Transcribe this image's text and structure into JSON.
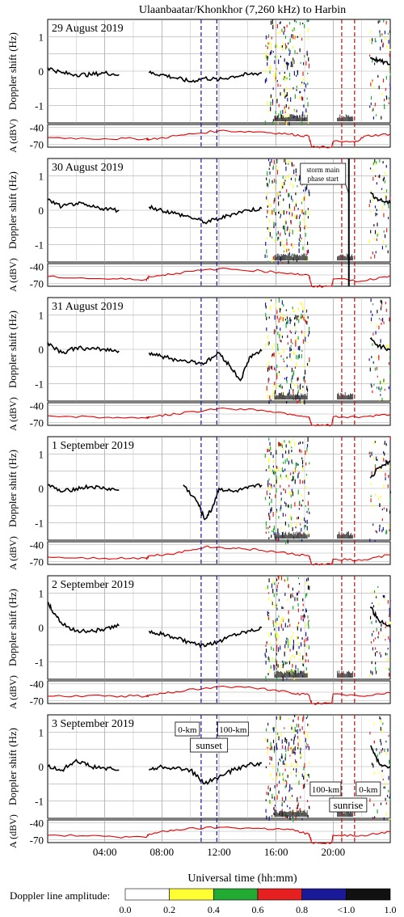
{
  "chart_data": {
    "type": "line",
    "title": "Ulaanbaatar/Khonkhor (7,260 kHz) to Harbin",
    "xlabel": "Universal time (hh:mm)",
    "x_range_hours": [
      0,
      24
    ],
    "x_ticks": [
      "04:00",
      "08:00",
      "12:00",
      "16:00",
      "20:00"
    ],
    "x_tick_hours": [
      4,
      8,
      12,
      16,
      20
    ],
    "doppler_ylabel": "Doppler shift (Hz)",
    "doppler_ylim": [
      -1.5,
      1.5
    ],
    "doppler_ticks": [
      1,
      0,
      -1
    ],
    "amp_ylabel": "A (dBV)",
    "amp_ticks": [
      -40,
      -70
    ],
    "amp_ylim": [
      -75,
      -35
    ],
    "grid": true,
    "panels": [
      {
        "label": "29 August 2019",
        "sunset_hours": [
          10.75,
          11.85
        ],
        "sunrise_hours": [
          20.6,
          21.5
        ],
        "doppler": [
          [
            0,
            0.1
          ],
          [
            1,
            -0.05
          ],
          [
            2,
            -0.1
          ],
          [
            3,
            -0.1
          ],
          [
            4,
            -0.05
          ],
          [
            5,
            -0.1
          ],
          [
            7.1,
            -0.05
          ],
          [
            8,
            -0.1
          ],
          [
            9,
            -0.2
          ],
          [
            10,
            -0.3
          ],
          [
            11,
            -0.2
          ],
          [
            12,
            -0.25
          ],
          [
            13,
            -0.15
          ],
          [
            14,
            -0.1
          ],
          [
            15,
            -0.05
          ],
          [
            22.6,
            0.4
          ],
          [
            23.2,
            0.3
          ],
          [
            24,
            0.2
          ]
        ],
        "amplitude": [
          [
            0,
            -58
          ],
          [
            4,
            -60
          ],
          [
            6.9,
            -60
          ],
          [
            7.1,
            -62
          ],
          [
            9,
            -55
          ],
          [
            12,
            -46
          ],
          [
            15,
            -48
          ],
          [
            17,
            -52
          ],
          [
            18.3,
            -56
          ],
          [
            18.5,
            -75
          ],
          [
            19.9,
            -75
          ],
          [
            20,
            -65
          ],
          [
            21.5,
            -66
          ],
          [
            22.3,
            -55
          ],
          [
            24,
            -52
          ]
        ]
      },
      {
        "label": "30 August 2019",
        "sunset_hours": [
          10.75,
          11.85
        ],
        "sunrise_hours": [
          20.6,
          21.5
        ],
        "storm_hour": 21.1,
        "storm_label": [
          "storm main",
          "phase start"
        ],
        "doppler": [
          [
            0,
            0.3
          ],
          [
            1,
            0.1
          ],
          [
            2,
            0.2
          ],
          [
            3,
            0.1
          ],
          [
            4,
            0.05
          ],
          [
            5,
            0.0
          ],
          [
            7.1,
            0.1
          ],
          [
            8,
            0.0
          ],
          [
            9,
            -0.1
          ],
          [
            10,
            -0.2
          ],
          [
            11,
            -0.35
          ],
          [
            12,
            -0.25
          ],
          [
            13,
            -0.1
          ],
          [
            14,
            0.0
          ],
          [
            15,
            0.05
          ],
          [
            22.6,
            0.5
          ],
          [
            23.2,
            0.3
          ],
          [
            24,
            0.2
          ]
        ],
        "amplitude": [
          [
            0,
            -58
          ],
          [
            4,
            -62
          ],
          [
            6.9,
            -63
          ],
          [
            7.1,
            -58
          ],
          [
            9,
            -52
          ],
          [
            12,
            -44
          ],
          [
            15,
            -48
          ],
          [
            17,
            -52
          ],
          [
            18.3,
            -56
          ],
          [
            18.5,
            -75
          ],
          [
            19.9,
            -75
          ],
          [
            20,
            -62
          ],
          [
            22,
            -66
          ],
          [
            24,
            -56
          ]
        ]
      },
      {
        "label": "31 August 2019",
        "sunset_hours": [
          10.75,
          11.85
        ],
        "sunrise_hours": [
          20.6,
          21.5
        ],
        "doppler": [
          [
            0,
            0.2
          ],
          [
            1,
            -0.1
          ],
          [
            2,
            0.05
          ],
          [
            3,
            0.0
          ],
          [
            4,
            0.0
          ],
          [
            5,
            -0.05
          ],
          [
            7.1,
            -0.1
          ],
          [
            8,
            -0.2
          ],
          [
            9,
            -0.3
          ],
          [
            10,
            -0.35
          ],
          [
            11,
            -0.4
          ],
          [
            12,
            -0.1
          ],
          [
            12.8,
            -0.5
          ],
          [
            13.5,
            -0.9
          ],
          [
            14.2,
            -0.2
          ],
          [
            15,
            -0.05
          ],
          [
            22.6,
            0.3
          ],
          [
            23.2,
            0.1
          ],
          [
            24,
            0.0
          ]
        ],
        "amplitude": [
          [
            0,
            -58
          ],
          [
            4,
            -61
          ],
          [
            6.9,
            -62
          ],
          [
            7.1,
            -60
          ],
          [
            9,
            -55
          ],
          [
            12,
            -45
          ],
          [
            15,
            -48
          ],
          [
            17,
            -55
          ],
          [
            18.3,
            -60
          ],
          [
            18.5,
            -75
          ],
          [
            19.9,
            -75
          ],
          [
            20,
            -60
          ],
          [
            22,
            -60
          ],
          [
            24,
            -56
          ]
        ]
      },
      {
        "label": "1 September 2019",
        "sunset_hours": [
          10.75,
          11.85
        ],
        "sunrise_hours": [
          20.6,
          21.5
        ],
        "doppler": [
          [
            0,
            0.1
          ],
          [
            1,
            -0.1
          ],
          [
            2,
            0.0
          ],
          [
            3,
            0.05
          ],
          [
            4,
            0.0
          ],
          [
            5,
            -0.05
          ],
          [
            9.5,
            0.1
          ],
          [
            10.5,
            -0.4
          ],
          [
            11,
            -0.9
          ],
          [
            11.5,
            -0.6
          ],
          [
            12,
            0.0
          ],
          [
            13,
            -0.1
          ],
          [
            14,
            0.0
          ],
          [
            15,
            0.1
          ],
          [
            22.6,
            0.3
          ],
          [
            23.2,
            0.6
          ],
          [
            24,
            0.8
          ]
        ],
        "amplitude": [
          [
            0,
            -62
          ],
          [
            4,
            -64
          ],
          [
            6.9,
            -64
          ],
          [
            7.1,
            -60
          ],
          [
            9,
            -55
          ],
          [
            11,
            -44
          ],
          [
            13,
            -46
          ],
          [
            15,
            -50
          ],
          [
            17,
            -56
          ],
          [
            18.3,
            -60
          ],
          [
            18.5,
            -75
          ],
          [
            19.9,
            -75
          ],
          [
            20,
            -66
          ],
          [
            22,
            -68
          ],
          [
            24,
            -58
          ]
        ]
      },
      {
        "label": "2 September 2019",
        "sunset_hours": [
          10.75,
          11.85
        ],
        "sunrise_hours": [
          20.6,
          21.5
        ],
        "doppler": [
          [
            0,
            0.7
          ],
          [
            0.5,
            0.4
          ],
          [
            1,
            0.1
          ],
          [
            2,
            -0.1
          ],
          [
            3,
            -0.1
          ],
          [
            4,
            -0.05
          ],
          [
            5,
            0.05
          ],
          [
            7.1,
            -0.1
          ],
          [
            8,
            -0.2
          ],
          [
            9,
            -0.3
          ],
          [
            10,
            -0.45
          ],
          [
            11,
            -0.55
          ],
          [
            12,
            -0.4
          ],
          [
            13,
            -0.2
          ],
          [
            14,
            -0.1
          ],
          [
            15,
            0.0
          ],
          [
            22.6,
            0.6
          ],
          [
            23.2,
            0.2
          ],
          [
            24,
            0.0
          ]
        ],
        "amplitude": [
          [
            0,
            -62
          ],
          [
            4,
            -62
          ],
          [
            6.9,
            -62
          ],
          [
            7.1,
            -60
          ],
          [
            9,
            -54
          ],
          [
            12,
            -45
          ],
          [
            15,
            -48
          ],
          [
            17,
            -56
          ],
          [
            18.3,
            -60
          ],
          [
            18.5,
            -75
          ],
          [
            19.9,
            -75
          ],
          [
            20,
            -58
          ],
          [
            22,
            -62
          ],
          [
            24,
            -56
          ]
        ]
      },
      {
        "label": "3 September 2019",
        "sunset_hours": [
          10.75,
          11.85
        ],
        "sunrise_hours": [
          20.6,
          21.5
        ],
        "doppler": [
          [
            0,
            0.0
          ],
          [
            1,
            -0.1
          ],
          [
            2,
            0.2
          ],
          [
            3,
            0.0
          ],
          [
            4,
            -0.05
          ],
          [
            5,
            -0.1
          ],
          [
            7.1,
            -0.1
          ],
          [
            8,
            0.0
          ],
          [
            9,
            -0.05
          ],
          [
            10,
            -0.1
          ],
          [
            11,
            -0.5
          ],
          [
            12,
            -0.3
          ],
          [
            13,
            -0.1
          ],
          [
            14,
            0.05
          ],
          [
            15,
            0.1
          ],
          [
            22.6,
            0.6
          ],
          [
            23.2,
            0.1
          ],
          [
            24,
            0.0
          ]
        ],
        "amplitude": [
          [
            0,
            -62
          ],
          [
            4,
            -64
          ],
          [
            6.9,
            -66
          ],
          [
            7.1,
            -60
          ],
          [
            9,
            -52
          ],
          [
            12,
            -48
          ],
          [
            15,
            -50
          ],
          [
            17,
            -52
          ],
          [
            18.3,
            -60
          ],
          [
            18.5,
            -75
          ],
          [
            19.9,
            -75
          ],
          [
            20,
            -62
          ],
          [
            22,
            -62
          ],
          [
            24,
            -56
          ]
        ]
      }
    ],
    "annotations": {
      "sunset_left": "0-km",
      "sunset_right": "100-km",
      "sunset": "sunset",
      "sunrise_left": "100-km",
      "sunrise_right": "0-km",
      "sunrise": "sunrise"
    },
    "colorbar": {
      "label": "Doppler line amplitude:",
      "bins": [
        {
          "from": "0.0",
          "color": "#ffffff"
        },
        {
          "from": "0.2",
          "color": "#ffff33"
        },
        {
          "from": "0.4",
          "color": "#22aa33"
        },
        {
          "from": "0.6",
          "color": "#e62020"
        },
        {
          "from": "0.8",
          "color": "#1a1a99"
        },
        {
          "from": "<1.0",
          "color": "#111111"
        }
      ],
      "end_label": "1.0"
    },
    "colors": {
      "doppler_trace": "#000000",
      "amplitude_trace": "#e00000",
      "sunset_line": "#1a1aa0",
      "sunrise_line": "#b01010",
      "storm_line": "#000000"
    }
  }
}
